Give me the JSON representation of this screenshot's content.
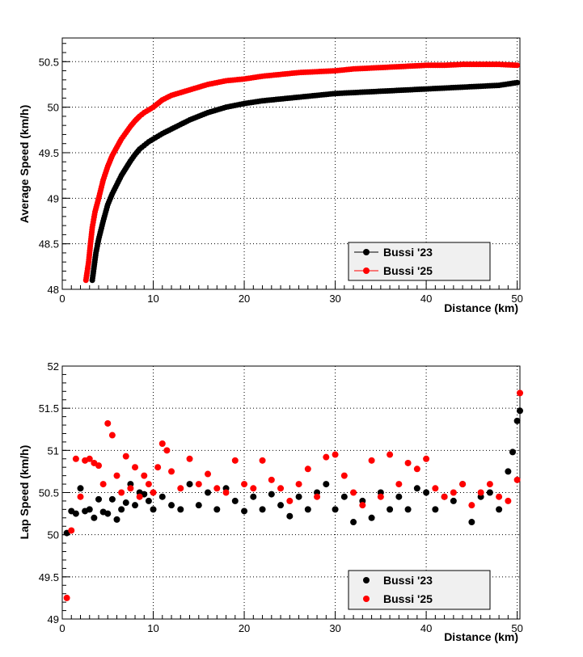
{
  "chart_data": [
    {
      "type": "line",
      "xlabel": "Distance (km)",
      "ylabel": "Average Speed (km/h)",
      "xlim": [
        0,
        50.3
      ],
      "ylim": [
        48,
        50.76
      ],
      "x_ticks": [
        "0",
        "10",
        "20",
        "30",
        "40",
        "50"
      ],
      "y_ticks": [
        "48",
        "48.5",
        "49",
        "49.5",
        "50",
        "50.5"
      ],
      "grid": true,
      "legend_position": "bottom-right",
      "series": [
        {
          "name": "Bussi '23",
          "color": "#000000",
          "x": [
            3.3,
            3.5,
            3.7,
            4.0,
            4.5,
            5.0,
            5.5,
            6.0,
            6.5,
            7.0,
            7.5,
            8.0,
            8.5,
            9.0,
            9.5,
            10,
            11,
            12,
            13,
            14,
            15,
            16,
            17,
            18,
            19,
            20,
            22,
            24,
            26,
            28,
            30,
            32,
            34,
            36,
            38,
            40,
            42,
            44,
            46,
            48,
            50
          ],
          "y": [
            48.1,
            48.25,
            48.4,
            48.55,
            48.75,
            48.93,
            49.05,
            49.15,
            49.25,
            49.33,
            49.41,
            49.48,
            49.54,
            49.58,
            49.62,
            49.65,
            49.71,
            49.76,
            49.81,
            49.86,
            49.9,
            49.94,
            49.97,
            50.0,
            50.02,
            50.04,
            50.07,
            50.09,
            50.11,
            50.13,
            50.15,
            50.16,
            50.17,
            50.18,
            50.19,
            50.2,
            50.21,
            50.22,
            50.23,
            50.24,
            50.27
          ]
        },
        {
          "name": "Bussi '25",
          "color": "#ff0000",
          "x": [
            2.6,
            2.9,
            3.1,
            3.3,
            3.6,
            4.0,
            4.5,
            5.0,
            5.5,
            6.0,
            6.5,
            7.0,
            7.5,
            8.0,
            8.5,
            9.0,
            9.5,
            10,
            11,
            12,
            13,
            14,
            15,
            16,
            17,
            18,
            19,
            20,
            22,
            24,
            26,
            28,
            30,
            32,
            34,
            36,
            38,
            40,
            42,
            44,
            46,
            48,
            50
          ],
          "y": [
            48.1,
            48.3,
            48.5,
            48.68,
            48.85,
            49.0,
            49.2,
            49.35,
            49.47,
            49.56,
            49.65,
            49.72,
            49.79,
            49.85,
            49.9,
            49.94,
            49.97,
            50.0,
            50.08,
            50.13,
            50.16,
            50.19,
            50.22,
            50.25,
            50.27,
            50.29,
            50.3,
            50.31,
            50.34,
            50.36,
            50.38,
            50.39,
            50.4,
            50.42,
            50.43,
            50.44,
            50.45,
            50.46,
            50.46,
            50.47,
            50.47,
            50.47,
            50.46
          ]
        }
      ]
    },
    {
      "type": "scatter",
      "xlabel": "Distance (km)",
      "ylabel": "Lap Speed (km/h)",
      "xlim": [
        0,
        50.3
      ],
      "ylim": [
        49,
        52
      ],
      "x_ticks": [
        "0",
        "10",
        "20",
        "30",
        "40",
        "50"
      ],
      "y_ticks": [
        "49",
        "49.5",
        "50",
        "50.5",
        "51",
        "51.5",
        "52"
      ],
      "grid": true,
      "legend_position": "bottom-right",
      "series": [
        {
          "name": "Bussi '23",
          "color": "#000000",
          "x": [
            0.5,
            1.0,
            1.5,
            2.0,
            2.5,
            3.0,
            3.5,
            4.0,
            4.5,
            5.0,
            5.5,
            6.0,
            6.5,
            7.0,
            7.5,
            8.0,
            8.5,
            9.0,
            9.5,
            10.0,
            11.0,
            12.0,
            13.0,
            14.0,
            15.0,
            16.0,
            17.0,
            18.0,
            19.0,
            20.0,
            21.0,
            22.0,
            23.0,
            24.0,
            25.0,
            26.0,
            27.0,
            28.0,
            29.0,
            30.0,
            31.0,
            32.0,
            33.0,
            34.0,
            35.0,
            36.0,
            37.0,
            38.0,
            39.0,
            40.0,
            41.0,
            42.0,
            43.0,
            44.0,
            45.0,
            46.0,
            47.0,
            48.0,
            49.0,
            49.5,
            50.0,
            50.3
          ],
          "y": [
            50.02,
            50.28,
            50.25,
            50.55,
            50.28,
            50.3,
            50.2,
            50.42,
            50.27,
            50.25,
            50.42,
            50.18,
            50.3,
            50.38,
            50.6,
            50.35,
            50.5,
            50.48,
            50.4,
            50.3,
            50.45,
            50.35,
            50.3,
            50.6,
            50.35,
            50.5,
            50.3,
            50.55,
            50.4,
            50.28,
            50.45,
            50.3,
            50.48,
            50.35,
            50.22,
            50.45,
            50.3,
            50.5,
            50.6,
            50.3,
            50.45,
            50.15,
            50.4,
            50.2,
            50.5,
            50.3,
            50.45,
            50.3,
            50.55,
            50.5,
            50.3,
            50.45,
            50.4,
            50.6,
            50.15,
            50.45,
            50.5,
            50.3,
            50.75,
            50.98,
            51.35,
            51.47
          ]
        },
        {
          "name": "Bussi '25",
          "color": "#ff0000",
          "x": [
            0.5,
            1.0,
            1.5,
            2.0,
            2.5,
            3.0,
            3.5,
            4.0,
            4.5,
            5.0,
            5.5,
            6.0,
            6.5,
            7.0,
            7.5,
            8.0,
            8.5,
            9.0,
            9.5,
            10.0,
            10.5,
            11.0,
            11.5,
            12.0,
            13.0,
            14.0,
            15.0,
            16.0,
            17.0,
            18.0,
            19.0,
            20.0,
            21.0,
            22.0,
            23.0,
            24.0,
            25.0,
            26.0,
            27.0,
            28.0,
            29.0,
            30.0,
            31.0,
            32.0,
            33.0,
            34.0,
            35.0,
            36.0,
            37.0,
            38.0,
            39.0,
            40.0,
            41.0,
            42.0,
            43.0,
            44.0,
            45.0,
            46.0,
            47.0,
            48.0,
            49.0,
            50.0,
            50.3
          ],
          "y": [
            49.25,
            50.05,
            50.9,
            50.45,
            50.88,
            50.9,
            50.85,
            50.82,
            50.6,
            51.32,
            51.18,
            50.7,
            50.5,
            50.93,
            50.55,
            50.8,
            50.45,
            50.7,
            50.6,
            50.5,
            50.8,
            51.08,
            51.0,
            50.75,
            50.55,
            50.9,
            50.6,
            50.72,
            50.55,
            50.5,
            50.88,
            50.6,
            50.55,
            50.88,
            50.65,
            50.55,
            50.4,
            50.6,
            50.78,
            50.45,
            50.92,
            50.95,
            50.7,
            50.5,
            50.35,
            50.88,
            50.45,
            50.95,
            50.6,
            50.85,
            50.78,
            50.9,
            50.55,
            50.45,
            50.5,
            50.6,
            50.35,
            50.5,
            50.6,
            50.45,
            50.4,
            50.65,
            51.68
          ]
        }
      ]
    }
  ]
}
